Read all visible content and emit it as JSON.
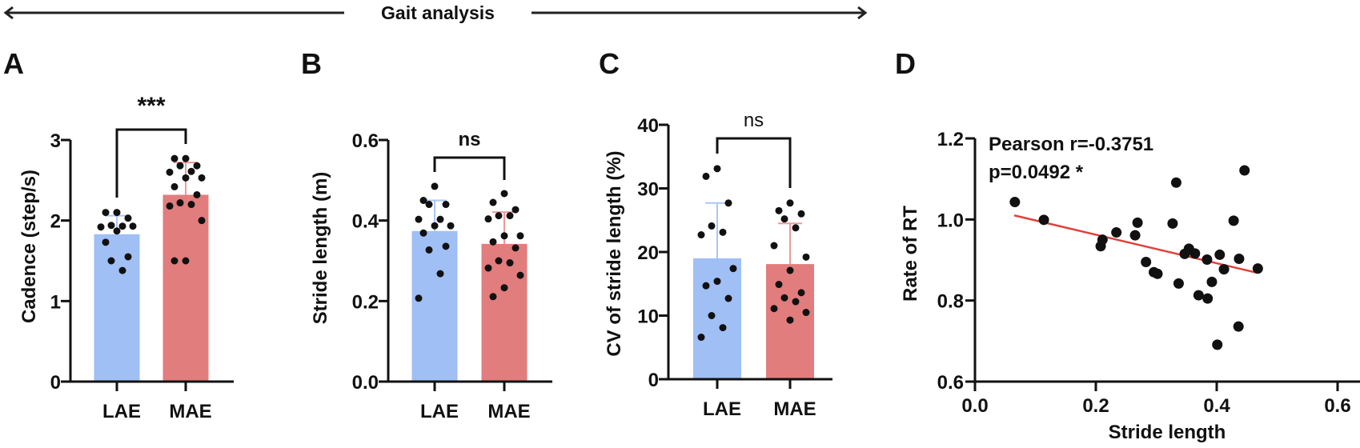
{
  "header": {
    "title": "Gait analysis"
  },
  "colors": {
    "lae": "#a0bff5",
    "mae": "#e27d7d",
    "lae_err": "#a9c6f5",
    "mae_err": "#eb9a9a",
    "fit": "#e0403a",
    "ink": "#111111"
  },
  "chart_data": [
    {
      "panel": "A",
      "type": "bar",
      "ylabel": "Cadence (step/s)",
      "ylim": [
        0,
        3
      ],
      "yticks": [
        "0",
        "1",
        "2",
        "3"
      ],
      "categories": [
        "LAE",
        "MAE"
      ],
      "significance": "***",
      "series": [
        {
          "name": "LAE",
          "mean": 1.83,
          "sd": 0.23,
          "points": [
            2.1,
            2.1,
            2.03,
            1.94,
            1.93,
            1.92,
            1.93,
            1.87,
            1.73,
            1.55,
            1.5,
            1.38
          ]
        },
        {
          "name": "MAE",
          "mean": 2.32,
          "sd": 0.4,
          "points": [
            2.77,
            2.77,
            2.68,
            2.68,
            2.61,
            2.6,
            2.53,
            2.53,
            2.42,
            2.32,
            2.22,
            2.2,
            2.18,
            2.0,
            1.5,
            1.5
          ]
        }
      ]
    },
    {
      "panel": "B",
      "type": "bar",
      "ylabel": "Stride length (m)",
      "ylim": [
        0,
        0.6
      ],
      "yticks": [
        "0.0",
        "0.2",
        "0.4",
        "0.6"
      ],
      "categories": [
        "LAE",
        "MAE"
      ],
      "significance": "ns",
      "series": [
        {
          "name": "LAE",
          "mean": 0.374,
          "sd": 0.076,
          "points": [
            0.485,
            0.45,
            0.44,
            0.44,
            0.403,
            0.403,
            0.387,
            0.387,
            0.369,
            0.336,
            0.327,
            0.268,
            0.207
          ]
        },
        {
          "name": "MAE",
          "mean": 0.342,
          "sd": 0.079,
          "points": [
            0.467,
            0.445,
            0.427,
            0.412,
            0.412,
            0.404,
            0.362,
            0.362,
            0.347,
            0.332,
            0.3,
            0.295,
            0.282,
            0.264,
            0.233,
            0.211
          ]
        }
      ]
    },
    {
      "panel": "C",
      "type": "bar",
      "ylabel": "CV of stride length (%)",
      "ylim": [
        0,
        40
      ],
      "yticks": [
        "0",
        "10",
        "20",
        "30",
        "40"
      ],
      "categories": [
        "LAE",
        "MAE"
      ],
      "significance": "ns",
      "series": [
        {
          "name": "LAE",
          "mean": 19.0,
          "sd": 8.7,
          "points": [
            33.1,
            31.9,
            27.7,
            24.1,
            23.1,
            22.7,
            17.4,
            15.4,
            14.7,
            12.7,
            10.0,
            8.1,
            6.6
          ]
        },
        {
          "name": "MAE",
          "mean": 18.1,
          "sd": 6.4,
          "points": [
            27.7,
            26.5,
            26.0,
            25.2,
            23.8,
            21.0,
            19.2,
            17.1,
            14.9,
            13.6,
            12.8,
            12.2,
            11.1,
            10.5,
            9.3
          ]
        }
      ]
    },
    {
      "panel": "D",
      "type": "scatter",
      "xlabel": "Stride length",
      "ylabel": "Rate of RT",
      "xlim": [
        0,
        0.6
      ],
      "ylim": [
        0.6,
        1.2
      ],
      "xticks": [
        "0.0",
        "0.2",
        "0.4",
        "0.6"
      ],
      "yticks": [
        "0.6",
        "0.8",
        "1.0",
        "1.2"
      ],
      "annotation": [
        "Pearson r=-0.3751",
        "p=0.0492  *"
      ],
      "fit": {
        "x": [
          0.065,
          0.468
        ],
        "y": [
          1.01,
          0.868
        ]
      },
      "points": [
        [
          0.066,
          1.043
        ],
        [
          0.114,
          0.999
        ],
        [
          0.208,
          0.934
        ],
        [
          0.211,
          0.95
        ],
        [
          0.234,
          0.968
        ],
        [
          0.265,
          0.961
        ],
        [
          0.269,
          0.992
        ],
        [
          0.283,
          0.895
        ],
        [
          0.296,
          0.87
        ],
        [
          0.302,
          0.866
        ],
        [
          0.327,
          0.99
        ],
        [
          0.333,
          1.091
        ],
        [
          0.337,
          0.842
        ],
        [
          0.347,
          0.915
        ],
        [
          0.354,
          0.928
        ],
        [
          0.364,
          0.916
        ],
        [
          0.37,
          0.813
        ],
        [
          0.384,
          0.901
        ],
        [
          0.385,
          0.805
        ],
        [
          0.392,
          0.846
        ],
        [
          0.405,
          0.913
        ],
        [
          0.412,
          0.877
        ],
        [
          0.401,
          0.691
        ],
        [
          0.428,
          0.997
        ],
        [
          0.437,
          0.903
        ],
        [
          0.436,
          0.736
        ],
        [
          0.446,
          1.121
        ],
        [
          0.468,
          0.879
        ]
      ]
    }
  ]
}
